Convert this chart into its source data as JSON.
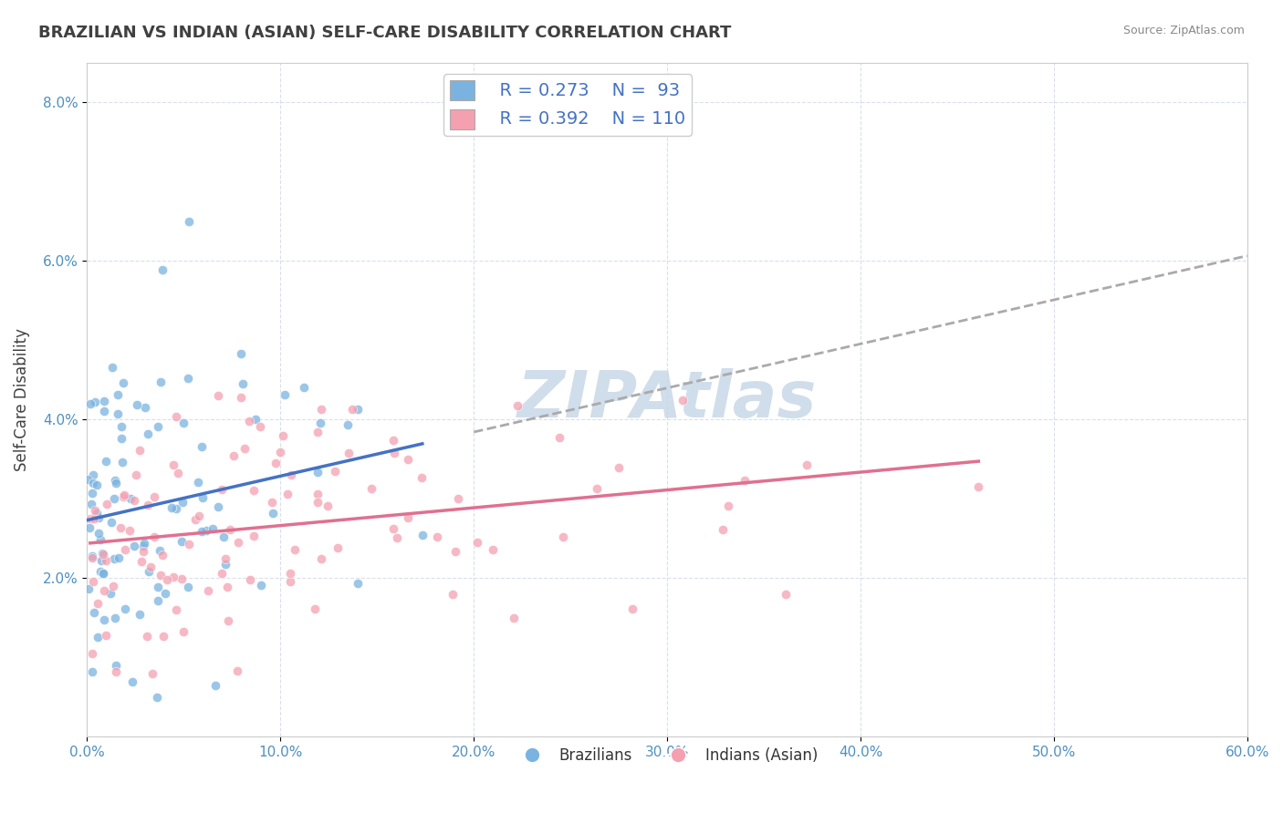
{
  "title": "BRAZILIAN VS INDIAN (ASIAN) SELF-CARE DISABILITY CORRELATION CHART",
  "source": "Source: ZipAtlas.com",
  "xlabel": "",
  "ylabel": "Self-Care Disability",
  "xlim": [
    0.0,
    0.6
  ],
  "ylim": [
    0.0,
    0.085
  ],
  "xtick_labels": [
    "0.0%",
    "10.0%",
    "20.0%",
    "30.0%",
    "40.0%",
    "50.0%",
    "60.0%"
  ],
  "xtick_values": [
    0.0,
    0.1,
    0.2,
    0.3,
    0.4,
    0.5,
    0.6
  ],
  "ytick_labels": [
    "2.0%",
    "4.0%",
    "6.0%",
    "8.0%"
  ],
  "ytick_values": [
    0.02,
    0.04,
    0.06,
    0.08
  ],
  "brazilian_color": "#7ab3e0",
  "indian_color": "#f4a0b0",
  "trend_brazilian_color": "#4472c4",
  "trend_indian_color": "#e07090",
  "watermark_color": "#c8d8e8",
  "legend_r_brazilian": "R = 0.273",
  "legend_n_brazilian": "N =  93",
  "legend_r_indian": "R = 0.392",
  "legend_n_indian": "N = 110",
  "legend_label_brazilian": "Brazilians",
  "legend_label_indian": "Indians (Asian)",
  "background_color": "#ffffff",
  "grid_color": "#d0d8e8",
  "title_color": "#404040",
  "title_fontsize": 13,
  "axis_label_color": "#404040",
  "tick_label_color": "#5090c0",
  "watermark_text": "ZIPAtlas",
  "seed": 42,
  "n_brazilian": 93,
  "n_indian": 110,
  "r_brazilian": 0.273,
  "r_indian": 0.392
}
